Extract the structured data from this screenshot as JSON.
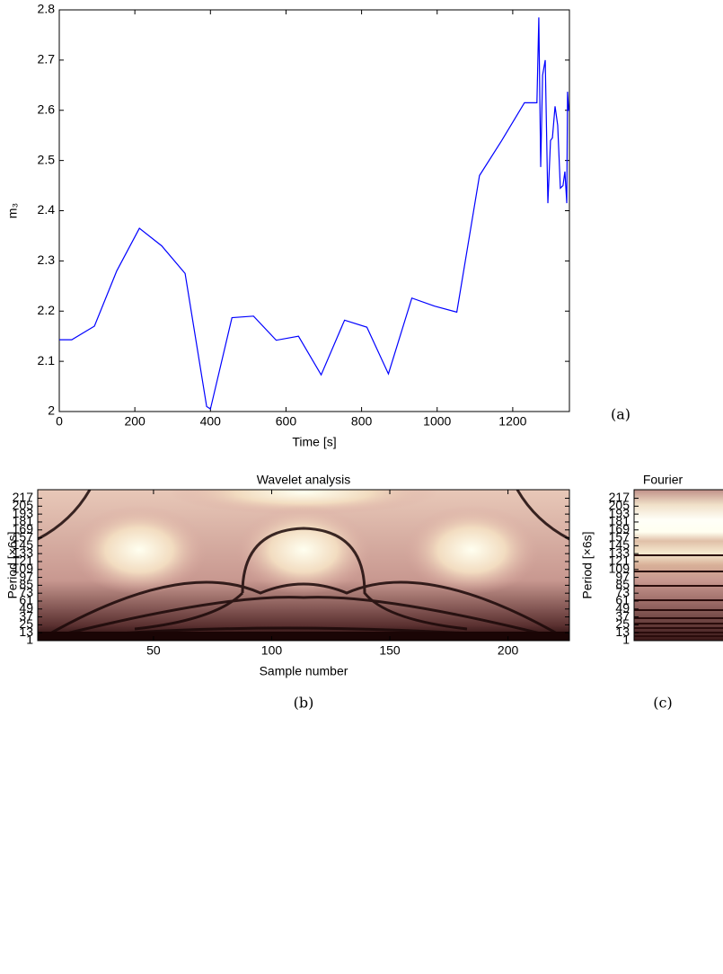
{
  "chart_data": [
    {
      "type": "line",
      "panel_label": "(a)",
      "xlabel": "Time [s]",
      "ylabel": "m₃",
      "x": [
        0,
        33,
        93,
        152,
        212,
        271,
        333,
        390,
        400,
        457,
        514,
        574,
        633,
        693,
        755,
        814,
        871,
        933,
        993,
        1052,
        1112,
        1171,
        1231,
        1264,
        1269,
        1274,
        1279,
        1286,
        1293,
        1300,
        1305,
        1312,
        1319,
        1326,
        1333,
        1338,
        1343,
        1345,
        1348,
        1350
      ],
      "series": [
        {
          "color": "#0000ff",
          "values": [
            2.143,
            2.143,
            2.17,
            2.28,
            2.365,
            2.33,
            2.275,
            2.01,
            2.005,
            2.187,
            2.19,
            2.142,
            2.15,
            2.073,
            2.182,
            2.168,
            2.075,
            2.226,
            2.21,
            2.198,
            2.47,
            2.54,
            2.615,
            2.615,
            2.785,
            2.487,
            2.67,
            2.7,
            2.415,
            2.54,
            2.545,
            2.608,
            2.57,
            2.445,
            2.45,
            2.478,
            2.415,
            2.637,
            2.6,
            2.6
          ]
        }
      ],
      "xlim": [
        0,
        1350
      ],
      "xticks": [
        0,
        200,
        400,
        600,
        800,
        1000,
        1200
      ],
      "ylim": [
        2,
        2.8
      ],
      "yticks": [
        2,
        2.1,
        2.2,
        2.3,
        2.4,
        2.5,
        2.6,
        2.7,
        2.8
      ]
    },
    {
      "type": "heatmap",
      "panel_label": "(b)",
      "title": "Wavelet analysis",
      "xlabel": "Sample number",
      "ylabel": "Period [×6s]",
      "xlim": [
        1,
        226
      ],
      "xticks": [
        50,
        100,
        150,
        200
      ],
      "ylim": [
        1,
        230
      ],
      "yticks": [
        1,
        13,
        25,
        37,
        49,
        61,
        73,
        85,
        97,
        109,
        121,
        133,
        145,
        157,
        169,
        181,
        193,
        205,
        217
      ]
    },
    {
      "type": "heatmap",
      "panel_label": "(c)",
      "title": "Fourier",
      "ylabel": "Period [×6s]",
      "ylim": [
        1,
        230
      ],
      "yticks": [
        1,
        13,
        25,
        37,
        49,
        61,
        73,
        85,
        97,
        109,
        121,
        133,
        145,
        157,
        169,
        181,
        193,
        205,
        217
      ]
    }
  ]
}
